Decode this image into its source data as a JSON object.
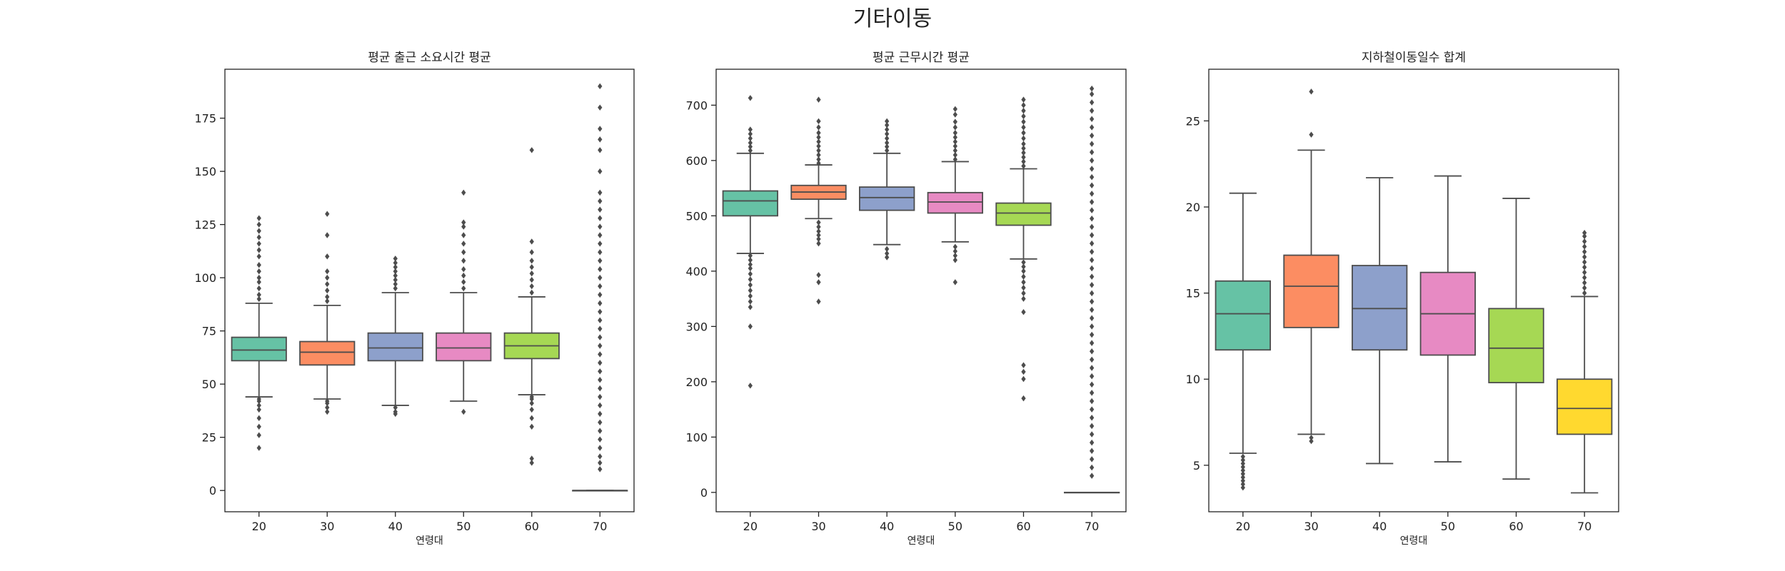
{
  "suptitle": "기타이동",
  "chart_data": [
    {
      "type": "box",
      "title": "평균 출근 소요시간 평균",
      "xlabel": "연령대",
      "ylabel": "",
      "categories": [
        "20",
        "30",
        "40",
        "50",
        "60",
        "70"
      ],
      "ylim": [
        -10,
        198
      ],
      "yticks": [
        0,
        25,
        50,
        75,
        100,
        125,
        150,
        175
      ],
      "grid": false,
      "boxes": [
        {
          "category": "20",
          "whisker_low": 44,
          "q1": 61,
          "median": 66,
          "q3": 72,
          "whisker_high": 88,
          "outliers": [
            20,
            26,
            30,
            34,
            38,
            40,
            42,
            43,
            90,
            92,
            95,
            98,
            100,
            103,
            106,
            110,
            113,
            116,
            119,
            122,
            125,
            128
          ]
        },
        {
          "category": "30",
          "whisker_low": 43,
          "q1": 59,
          "median": 65,
          "q3": 70,
          "whisker_high": 87,
          "outliers": [
            37,
            39,
            41,
            42,
            89,
            91,
            94,
            97,
            100,
            103,
            110,
            120,
            130
          ]
        },
        {
          "category": "40",
          "whisker_low": 40,
          "q1": 61,
          "median": 67,
          "q3": 74,
          "whisker_high": 93,
          "outliers": [
            36,
            37,
            39,
            95,
            97,
            99,
            101,
            103,
            105,
            107,
            109
          ]
        },
        {
          "category": "50",
          "whisker_low": 42,
          "q1": 61,
          "median": 67,
          "q3": 74,
          "whisker_high": 93,
          "outliers": [
            37,
            95,
            98,
            101,
            104,
            108,
            112,
            116,
            120,
            124,
            126,
            140
          ]
        },
        {
          "category": "60",
          "whisker_low": 45,
          "q1": 62,
          "median": 68,
          "q3": 74,
          "whisker_high": 91,
          "outliers": [
            13,
            15,
            30,
            34,
            38,
            41,
            43,
            44,
            93,
            96,
            99,
            102,
            105,
            108,
            112,
            117,
            160
          ]
        },
        {
          "category": "70",
          "whisker_low": 0,
          "q1": 0,
          "median": 0,
          "q3": 0,
          "whisker_high": 0,
          "outliers": [
            10,
            13,
            16,
            20,
            24,
            28,
            32,
            36,
            40,
            44,
            48,
            52,
            56,
            60,
            64,
            68,
            72,
            76,
            80,
            84,
            88,
            92,
            96,
            100,
            104,
            108,
            112,
            116,
            120,
            124,
            128,
            132,
            136,
            140,
            150,
            160,
            165,
            170,
            180,
            190
          ]
        }
      ]
    },
    {
      "type": "box",
      "title": "평균 근무시간 평균",
      "xlabel": "연령대",
      "ylabel": "",
      "categories": [
        "20",
        "30",
        "40",
        "50",
        "60",
        "70"
      ],
      "ylim": [
        -35,
        765
      ],
      "yticks": [
        0,
        100,
        200,
        300,
        400,
        500,
        600,
        700
      ],
      "grid": false,
      "boxes": [
        {
          "category": "20",
          "whisker_low": 432,
          "q1": 500,
          "median": 527,
          "q3": 545,
          "whisker_high": 613,
          "outliers": [
            193,
            300,
            335,
            345,
            355,
            365,
            375,
            385,
            395,
            405,
            412,
            420,
            428,
            618,
            625,
            632,
            640,
            648,
            656,
            713
          ]
        },
        {
          "category": "30",
          "whisker_low": 495,
          "q1": 530,
          "median": 543,
          "q3": 555,
          "whisker_high": 592,
          "outliers": [
            345,
            380,
            393,
            450,
            458,
            465,
            472,
            480,
            488,
            595,
            602,
            610,
            618,
            626,
            634,
            642,
            650,
            660,
            671,
            710
          ]
        },
        {
          "category": "40",
          "whisker_low": 448,
          "q1": 510,
          "median": 533,
          "q3": 552,
          "whisker_high": 613,
          "outliers": [
            425,
            432,
            440,
            618,
            625,
            632,
            640,
            648,
            656,
            664,
            671
          ]
        },
        {
          "category": "50",
          "whisker_low": 453,
          "q1": 505,
          "median": 525,
          "q3": 542,
          "whisker_high": 598,
          "outliers": [
            380,
            420,
            428,
            436,
            444,
            602,
            610,
            618,
            626,
            634,
            642,
            650,
            660,
            670,
            683,
            693
          ]
        },
        {
          "category": "60",
          "whisker_low": 422,
          "q1": 483,
          "median": 505,
          "q3": 523,
          "whisker_high": 585,
          "outliers": [
            170,
            205,
            218,
            230,
            326,
            350,
            360,
            370,
            380,
            390,
            400,
            408,
            416,
            590,
            598,
            606,
            614,
            622,
            630,
            640,
            650,
            660,
            670,
            680,
            690,
            700,
            710
          ]
        },
        {
          "category": "70",
          "whisker_low": 0,
          "q1": 0,
          "median": 0,
          "q3": 0,
          "whisker_high": 0,
          "outliers": [
            30,
            45,
            60,
            75,
            90,
            105,
            120,
            135,
            150,
            165,
            180,
            195,
            210,
            225,
            240,
            255,
            270,
            285,
            300,
            315,
            330,
            345,
            360,
            375,
            390,
            405,
            420,
            435,
            450,
            465,
            480,
            495,
            510,
            525,
            540,
            555,
            570,
            585,
            600,
            615,
            630,
            645,
            660,
            675,
            690,
            705,
            720,
            730
          ]
        }
      ]
    },
    {
      "type": "box",
      "title": "지하철이동일수 합계",
      "xlabel": "연령대",
      "ylabel": "",
      "categories": [
        "20",
        "30",
        "40",
        "50",
        "60",
        "70"
      ],
      "ylim": [
        2.3,
        28.0
      ],
      "yticks": [
        5,
        10,
        15,
        20,
        25
      ],
      "grid": false,
      "boxes": [
        {
          "category": "20",
          "whisker_low": 5.7,
          "q1": 11.7,
          "median": 13.8,
          "q3": 15.7,
          "whisker_high": 20.8,
          "outliers": [
            3.7,
            3.9,
            4.1,
            4.3,
            4.5,
            4.7,
            4.9,
            5.1,
            5.3,
            5.5
          ]
        },
        {
          "category": "30",
          "whisker_low": 6.8,
          "q1": 13.0,
          "median": 15.4,
          "q3": 17.2,
          "whisker_high": 23.3,
          "outliers": [
            6.4,
            6.6,
            24.2,
            26.7
          ]
        },
        {
          "category": "40",
          "whisker_low": 5.1,
          "q1": 11.7,
          "median": 14.1,
          "q3": 16.6,
          "whisker_high": 21.7,
          "outliers": []
        },
        {
          "category": "50",
          "whisker_low": 5.2,
          "q1": 11.4,
          "median": 13.8,
          "q3": 16.2,
          "whisker_high": 21.8,
          "outliers": []
        },
        {
          "category": "60",
          "whisker_low": 4.2,
          "q1": 9.8,
          "median": 11.8,
          "q3": 14.1,
          "whisker_high": 20.5,
          "outliers": []
        },
        {
          "category": "70",
          "whisker_low": 3.4,
          "q1": 6.8,
          "median": 8.3,
          "q3": 10.0,
          "whisker_high": 14.8,
          "outliers": [
            15.0,
            15.3,
            15.6,
            15.9,
            16.2,
            16.5,
            16.8,
            17.1,
            17.4,
            17.7,
            18.0,
            18.3,
            18.5
          ]
        }
      ]
    }
  ],
  "colors": {
    "palette": [
      "#66c2a5",
      "#fc8d62",
      "#8da0cb",
      "#e78ac3",
      "#a6d854",
      "#ffd92f"
    ],
    "line": "#4d4d4d",
    "outlier": "#4d4d4d",
    "axis": "#222222"
  }
}
